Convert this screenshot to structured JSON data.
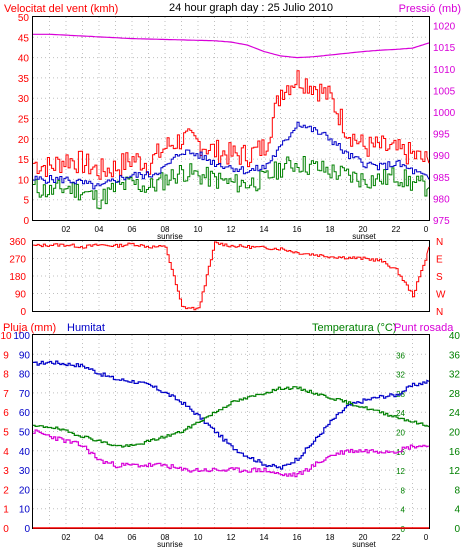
{
  "title": "24 hour graph day : 25 Julio 2010",
  "top": {
    "left_label": "Velocitat del vent (kmh)",
    "right_label": "Pressió (mb)",
    "left_ticks": [
      "0",
      "5",
      "10",
      "15",
      "20",
      "25",
      "30",
      "35",
      "40",
      "45",
      "50"
    ],
    "right_ticks": [
      "975",
      "980",
      "985",
      "990",
      "995",
      "1000",
      "1005",
      "1010",
      "1015",
      "1020"
    ],
    "colors": {
      "gust": "#ff0000",
      "wind": "#0000c8",
      "wind_avg": "#008000",
      "pressure": "#d800d8",
      "axis_left": "#ff0000",
      "axis_right": "#d800d8"
    }
  },
  "mid": {
    "left_ticks": [
      "0",
      "90",
      "180",
      "270",
      "360"
    ],
    "right_ticks": [
      "N",
      "W",
      "S",
      "E",
      "N"
    ],
    "color": "#ff0000"
  },
  "bottom": {
    "label_rain": "Pluja (mm)",
    "label_humidity": "Humitat",
    "label_temp": "Temperatura (°C)",
    "label_dew": "Punt rosada",
    "rain_ticks": [
      "0",
      "1",
      "2",
      "3",
      "4",
      "5",
      "6",
      "7",
      "8",
      "9",
      "10"
    ],
    "humidity_ticks": [
      "0",
      "10",
      "20",
      "30",
      "40",
      "50",
      "60",
      "70",
      "80",
      "90",
      "100"
    ],
    "temp_ticks_left": [
      "0",
      "4",
      "8",
      "12",
      "16",
      "20",
      "24",
      "28",
      "32",
      "36"
    ],
    "temp_ticks_right": [
      "0",
      "4",
      "8",
      "12",
      "16",
      "20",
      "24",
      "28",
      "32",
      "36",
      "40"
    ],
    "colors": {
      "rain": "#ff0000",
      "humidity": "#0000c8",
      "temp": "#008000",
      "dew": "#d800d8",
      "axis_right": "#008000"
    }
  },
  "x_ticks": [
    "02",
    "04",
    "06",
    "08",
    "10",
    "12",
    "14",
    "16",
    "18",
    "20",
    "22",
    "0"
  ],
  "sunrise_label": "sunrise",
  "sunset_label": "sunset",
  "chart_data": [
    {
      "type": "line",
      "xlabel": "",
      "ylabel": "Velocitat del vent (kmh)",
      "ylim": [
        0,
        50
      ],
      "y2label": "Pressió (mb)",
      "y2lim": [
        975,
        1022
      ],
      "x": [
        0,
        1,
        2,
        3,
        4,
        5,
        6,
        7,
        8,
        9,
        10,
        11,
        12,
        13,
        14,
        15,
        16,
        17,
        18,
        19,
        20,
        21,
        22,
        23,
        24
      ],
      "series": [
        {
          "values": [
            14,
            13,
            15,
            14,
            12,
            13,
            15,
            14,
            18,
            20,
            19,
            17,
            16,
            16,
            18,
            32,
            35,
            33,
            30,
            22,
            18,
            18,
            17,
            16,
            14
          ]
        },
        {
          "values": [
            10,
            10,
            10,
            9,
            8,
            10,
            11,
            11,
            13,
            17,
            16,
            14,
            13,
            12,
            13,
            18,
            24,
            22,
            20,
            16,
            14,
            13,
            14,
            12,
            10
          ]
        },
        {
          "values": [
            8,
            7,
            8,
            7,
            5,
            8,
            9,
            8,
            10,
            12,
            11,
            10,
            9,
            9,
            10,
            13,
            14,
            13,
            12,
            11,
            10,
            10,
            11,
            9,
            8
          ]
        },
        {
          "values": [
            1018.0,
            1018.0,
            1017.8,
            1017.6,
            1017.4,
            1017.2,
            1017.0,
            1016.9,
            1016.8,
            1016.7,
            1016.6,
            1016.5,
            1016.2,
            1015.5,
            1014.0,
            1013.0,
            1012.6,
            1012.8,
            1013.2,
            1013.6,
            1014.0,
            1014.3,
            1014.5,
            1014.8,
            1016.0
          ],
          "axis": "right"
        }
      ]
    },
    {
      "type": "line",
      "ylabel": "",
      "ylim": [
        0,
        360
      ],
      "x": [
        0,
        1,
        2,
        3,
        4,
        5,
        6,
        7,
        8,
        9,
        10,
        11,
        12,
        13,
        14,
        15,
        16,
        17,
        18,
        19,
        20,
        21,
        22,
        23,
        24
      ],
      "series": [
        {
          "values": [
            335,
            340,
            340,
            330,
            340,
            335,
            345,
            330,
            330,
            20,
            10,
            350,
            335,
            330,
            325,
            320,
            300,
            290,
            280,
            275,
            270,
            260,
            210,
            80,
            330
          ]
        }
      ]
    },
    {
      "type": "line",
      "ylabel": "Pluja (mm)",
      "ylim": [
        0,
        10
      ],
      "y2label": "Temperatura (°C)",
      "y2lim": [
        0,
        40
      ],
      "x": [
        0,
        1,
        2,
        3,
        4,
        5,
        6,
        7,
        8,
        9,
        10,
        11,
        12,
        13,
        14,
        15,
        16,
        17,
        18,
        19,
        20,
        21,
        22,
        23,
        24
      ],
      "series": [
        {
          "values": [
            0,
            0,
            0,
            0,
            0,
            0,
            0,
            0,
            0,
            0,
            0,
            0,
            0,
            0,
            0,
            0,
            0,
            0,
            0,
            0,
            0,
            0,
            0,
            0,
            0
          ]
        },
        {
          "values": [
            85,
            86,
            85,
            84,
            80,
            77,
            76,
            74,
            70,
            65,
            58,
            50,
            42,
            37,
            33,
            31,
            36,
            45,
            55,
            63,
            66,
            68,
            69,
            74,
            76
          ],
          "axis": "humidity"
        },
        {
          "values": [
            21,
            21,
            20,
            19,
            18,
            17,
            17,
            18,
            19,
            20,
            22,
            24,
            26,
            27,
            28,
            29,
            29,
            28,
            27,
            26,
            25,
            24,
            23,
            22,
            21
          ],
          "axis": "right"
        },
        {
          "values": [
            20,
            19,
            18,
            17,
            14,
            13,
            13,
            13,
            13,
            12,
            12,
            12,
            12,
            12,
            12,
            11,
            11,
            13,
            15,
            16,
            16,
            16,
            16,
            17,
            17
          ],
          "axis": "right"
        }
      ]
    }
  ]
}
